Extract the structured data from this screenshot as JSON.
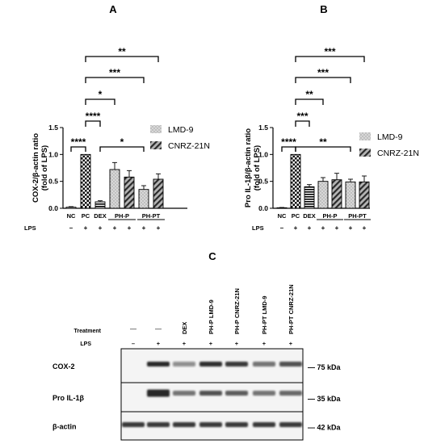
{
  "panels": {
    "a": {
      "letter": "A"
    },
    "b": {
      "letter": "B"
    },
    "c": {
      "letter": "C"
    }
  },
  "colors": {
    "lmd9_fill": "#c8c8c8",
    "cnrz_fill": "#909090",
    "ink": "#000000",
    "blot_band": "#1a1a1a",
    "blot_bg": "#f4f4f4"
  },
  "chart_data": [
    {
      "type": "bar",
      "panel": "A",
      "ylabel": "COX-2/β-actin ratio\n(fold of LPS)",
      "ylim": [
        0,
        1.5
      ],
      "yticks": [
        0.0,
        0.5,
        1.0,
        1.5
      ],
      "ytick_labels": [
        "0.0",
        "0.5",
        "1.0",
        "1.5"
      ],
      "categories": [
        "NC",
        "PC",
        "DEX",
        "PH-P",
        "PH-P",
        "PH-PT",
        "PH-PT"
      ],
      "category_labels": [
        "NC",
        "PC",
        "DEX",
        "",
        "",
        "",
        ""
      ],
      "group_labels": [
        {
          "label": "PH-P",
          "from": 3,
          "to": 4
        },
        {
          "label": "PH-PT",
          "from": 5,
          "to": 6
        }
      ],
      "lps_label": "LPS",
      "lps": [
        "–",
        "+",
        "+",
        "+",
        "+",
        "+",
        "+"
      ],
      "values": [
        0.02,
        1.0,
        0.12,
        0.72,
        0.58,
        0.35,
        0.54
      ],
      "errors": [
        0.01,
        0.0,
        0.02,
        0.13,
        0.12,
        0.07,
        0.1
      ],
      "patterns": [
        "white",
        "checker",
        "stripes",
        "dots",
        "diagonal",
        "dots",
        "diagonal"
      ],
      "legend": [
        {
          "name": "LMD-9",
          "pattern": "dots"
        },
        {
          "name": "CNRZ-21N",
          "pattern": "diagonal"
        }
      ],
      "legend_position": "right",
      "annotations": [
        {
          "from": 0,
          "to": 1,
          "label": "****",
          "level": 0
        },
        {
          "from": 1,
          "to": 2,
          "label": "****",
          "level": 1
        },
        {
          "from": 2,
          "to": 5,
          "label": "*",
          "level": 0
        },
        {
          "from": 1,
          "to": 3,
          "label": "*",
          "level": 2
        },
        {
          "from": 1,
          "to": 5,
          "label": "***",
          "level": 3
        },
        {
          "from": 1,
          "to": 6,
          "label": "**",
          "level": 4
        }
      ]
    },
    {
      "type": "bar",
      "panel": "B",
      "ylabel": "Pro IL-1β/β-actin ratio\n(fold of LPS)",
      "ylim": [
        0,
        1.5
      ],
      "yticks": [
        0.0,
        0.5,
        1.0,
        1.5
      ],
      "ytick_labels": [
        "0.0",
        "0.5",
        "1.0",
        "1.5"
      ],
      "categories": [
        "NC",
        "PC",
        "DEX",
        "PH-P",
        "PH-P",
        "PH-PT",
        "PH-PT"
      ],
      "category_labels": [
        "NC",
        "PC",
        "DEX",
        "",
        "",
        "",
        ""
      ],
      "group_labels": [
        {
          "label": "PH-P",
          "from": 3,
          "to": 4
        },
        {
          "label": "PH-PT",
          "from": 5,
          "to": 6
        }
      ],
      "lps_label": "LPS",
      "lps": [
        "–",
        "+",
        "+",
        "+",
        "+",
        "+",
        "+"
      ],
      "values": [
        0.01,
        1.0,
        0.4,
        0.5,
        0.53,
        0.49,
        0.49
      ],
      "errors": [
        0.005,
        0.0,
        0.04,
        0.07,
        0.12,
        0.05,
        0.11
      ],
      "patterns": [
        "white",
        "checker",
        "stripes",
        "dots",
        "diagonal",
        "dots",
        "diagonal"
      ],
      "legend": [
        {
          "name": "LMD-9",
          "pattern": "dots"
        },
        {
          "name": "CNRZ-21N",
          "pattern": "diagonal"
        }
      ],
      "legend_position": "right",
      "annotations": [
        {
          "from": 0,
          "to": 1,
          "label": "****",
          "level": 0
        },
        {
          "from": 1,
          "to": 2,
          "label": "***",
          "level": 1
        },
        {
          "from": 1,
          "to": 5,
          "label": "**",
          "level": 0
        },
        {
          "from": 1,
          "to": 3,
          "label": "**",
          "level": 2
        },
        {
          "from": 1,
          "to": 5,
          "label": "***",
          "level": 3
        },
        {
          "from": 1,
          "to": 6,
          "label": "***",
          "level": 4
        }
      ]
    }
  ],
  "blot": {
    "treatment_label": "Treatment",
    "lps_label": "LPS",
    "treatments": [
      "—",
      "—",
      "DEX",
      "PH-P LMD-9",
      "PH-P CNRZ-21N",
      "PH-PT LMD-9",
      "PH-PT CNRZ-21N"
    ],
    "lps": [
      "–",
      "+",
      "+",
      "+",
      "+",
      "+",
      "+"
    ],
    "rows": [
      {
        "name": "COX-2",
        "size": "75 kDa",
        "intensity": [
          0.0,
          0.95,
          0.45,
          0.9,
          0.85,
          0.6,
          0.75
        ]
      },
      {
        "name": "Pro IL-1β",
        "size": "35 kDa",
        "intensity": [
          0.0,
          0.95,
          0.6,
          0.75,
          0.7,
          0.6,
          0.65
        ]
      },
      {
        "name": "β-actin",
        "size": "42 kDa",
        "intensity": [
          0.85,
          0.85,
          0.85,
          0.85,
          0.85,
          0.85,
          0.85
        ]
      }
    ]
  }
}
